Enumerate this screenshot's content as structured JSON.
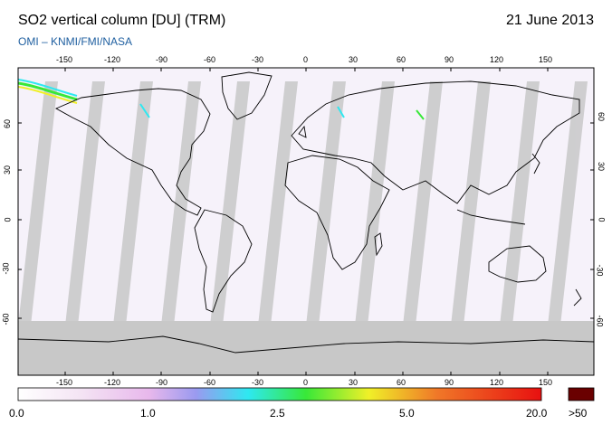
{
  "header": {
    "title": "SO2 vertical column [DU] (TRM)",
    "date": "21 June 2013",
    "credit": "OMI  –  KNMI/FMI/NASA"
  },
  "map": {
    "lon_ticks": [
      "-150",
      "-120",
      "-90",
      "-60",
      "-30",
      "0",
      "30",
      "60",
      "90",
      "120",
      "150"
    ],
    "lat_ticks": [
      "60",
      "30",
      "0",
      "-30",
      "-60"
    ],
    "land_outline_color": "#000000",
    "no_data_color": "#c8c8c8",
    "background_color": "#f6f2fa"
  },
  "colorbar": {
    "labels": [
      "0.0",
      "1.0",
      "2.5",
      "5.0",
      "20.0",
      ">50"
    ],
    "colors": [
      "#ffffff",
      "#f0c8f0",
      "#9a9af0",
      "#2ee8f0",
      "#38e838",
      "#f0f028",
      "#f07828",
      "#e81010",
      "#6a0000"
    ]
  }
}
